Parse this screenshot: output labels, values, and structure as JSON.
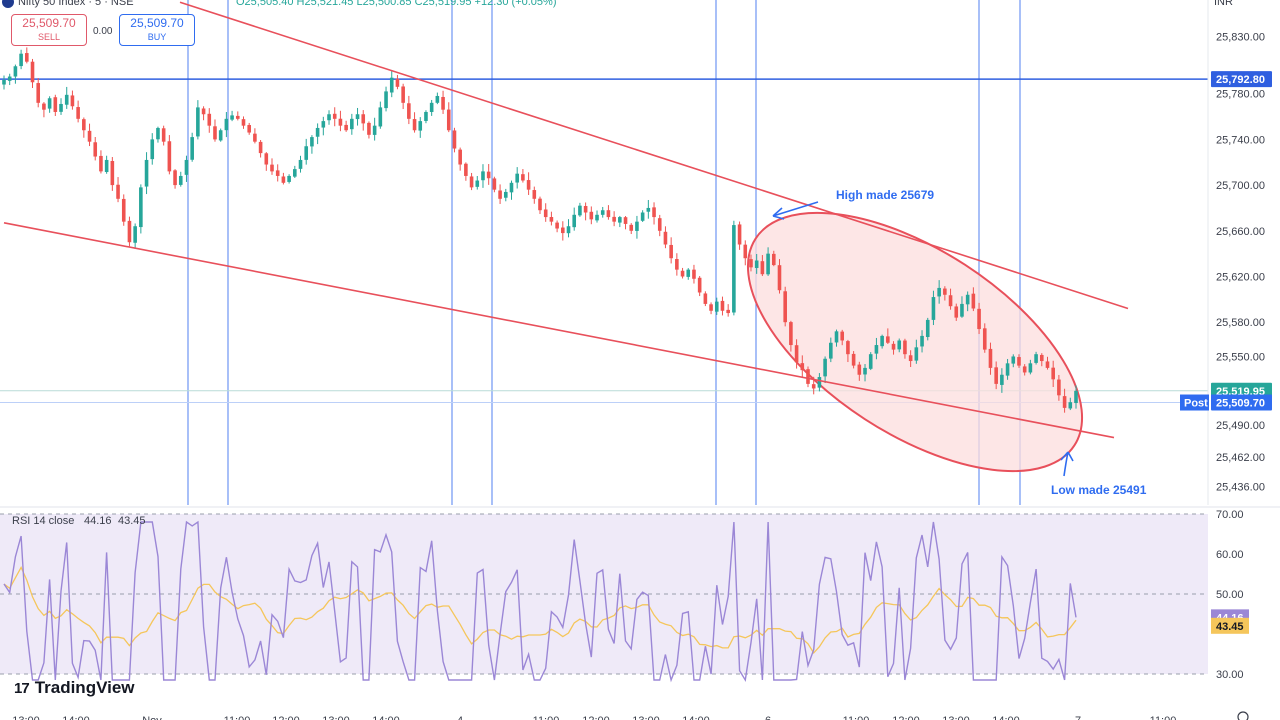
{
  "header": {
    "title": "Nifty 50 Index · 5 · NSE",
    "ohlc": "O25,505.40 H25,521.45 L25,500.85 C25,519.95 +12.30 (+0.05%)",
    "currency": "INR"
  },
  "trade": {
    "sell_price": "25,509.70",
    "sell_label": "SELL",
    "spread": "0.00",
    "buy_price": "25,509.70",
    "buy_label": "BUY"
  },
  "colors": {
    "up": "#26a69a",
    "down": "#ef5350",
    "trendline": "#e8505b",
    "vline": "#6f95f2",
    "hline": "#2f5fe0",
    "ellipse_fill": "#fcdede",
    "rsi": "#9b87d6",
    "rsi_ma": "#f5c65b",
    "rsi_band": "#efeaf8"
  },
  "chart_data": [
    {
      "type": "candlestick",
      "ylim": [
        25420,
        25862
      ],
      "yticks": [
        25830,
        25780,
        25740,
        25700,
        25660,
        25620,
        25580,
        25550,
        25490,
        25462,
        25436
      ],
      "ytick_labels": [
        "25,830.00",
        "25,780.00",
        "25,740.00",
        "25,700.00",
        "25,660.00",
        "25,620.00",
        "25,580.00",
        "25,550.00",
        "25,490.00",
        "25,462.00",
        "25,436.00"
      ],
      "xtick_labels": [
        "13:00",
        "14:00",
        "Nov",
        "11:00",
        "12:00",
        "13:00",
        "14:00",
        "4",
        "11:00",
        "12:00",
        "13:00",
        "14:00",
        "6",
        "11:00",
        "12:00",
        "13:00",
        "14:00",
        "7",
        "11:00"
      ],
      "price_levels": [
        {
          "price": 25792.8,
          "label": "25,792.80",
          "color": "#2f5fe0"
        },
        {
          "price": 25519.95,
          "label": "25,519.95",
          "color": "#26a69a"
        },
        {
          "price": 25509.7,
          "label": "25,509.70",
          "color": "#2f6cf0",
          "tag": "Post"
        }
      ],
      "annotations": [
        {
          "text": "High made 25679",
          "price": 25679
        },
        {
          "text": "Low made 25491",
          "price": 25491
        }
      ],
      "close_path": [
        25792,
        25795,
        25804,
        25815,
        25808,
        25790,
        25772,
        25766,
        25776,
        25764,
        25771,
        25779,
        25769,
        25758,
        25748,
        25738,
        25725,
        25712,
        25722,
        25700,
        25688,
        25668,
        25650,
        25664,
        25698,
        25722,
        25740,
        25750,
        25738,
        25712,
        25700,
        25708,
        25722,
        25742,
        25768,
        25762,
        25752,
        25740,
        25748,
        25758,
        25761,
        25758,
        25752,
        25746,
        25738,
        25728,
        25718,
        25712,
        25708,
        25702,
        25708,
        25714,
        25722,
        25734,
        25742,
        25750,
        25756,
        25762,
        25758,
        25752,
        25748,
        25758,
        25762,
        25754,
        25744,
        25752,
        25768,
        25782,
        25794,
        25786,
        25772,
        25758,
        25748,
        25756,
        25764,
        25772,
        25778,
        25766,
        25748,
        25732,
        25718,
        25708,
        25698,
        25704,
        25712,
        25706,
        25696,
        25688,
        25694,
        25702,
        25710,
        25704,
        25696,
        25688,
        25678,
        25672,
        25668,
        25662,
        25658,
        25664,
        25674,
        25682,
        25676,
        25670,
        25674,
        25678,
        25672,
        25668,
        25672,
        25666,
        25660,
        25668,
        25676,
        25680,
        25672,
        25660,
        25648,
        25636,
        25626,
        25620,
        25626,
        25618,
        25606,
        25596,
        25590,
        25598,
        25590,
        25588,
        25665,
        25648,
        25636,
        25628,
        25634,
        25622,
        25640,
        25630,
        25608,
        25580,
        25560,
        25545,
        25538,
        25526,
        25522,
        25532,
        25548,
        25562,
        25572,
        25564,
        25552,
        25542,
        25534,
        25540,
        25552,
        25560,
        25568,
        25562,
        25556,
        25564,
        25552,
        25546,
        25558,
        25568,
        25582,
        25602,
        25610,
        25604,
        25594,
        25584,
        25596,
        25604,
        25592,
        25574,
        25556,
        25540,
        25526,
        25534,
        25544,
        25550,
        25542,
        25536,
        25544,
        25552,
        25546,
        25540,
        25530,
        25516,
        25505,
        25510,
        25519.95
      ],
      "rsi": {
        "label": "RSI 14 close",
        "value": 44.16,
        "ma_value": 43.45,
        "value_label": "44.16",
        "ma_label": "43.45",
        "ylim": [
          26,
          71
        ],
        "yticks": [
          70,
          60,
          50,
          30
        ],
        "ytick_labels": [
          "70.00",
          "60.00",
          "50.00",
          "30.00"
        ],
        "bands": [
          30,
          50,
          70
        ]
      }
    }
  ],
  "branding": {
    "logo_mark": "17",
    "logo_text": "TradingView"
  }
}
